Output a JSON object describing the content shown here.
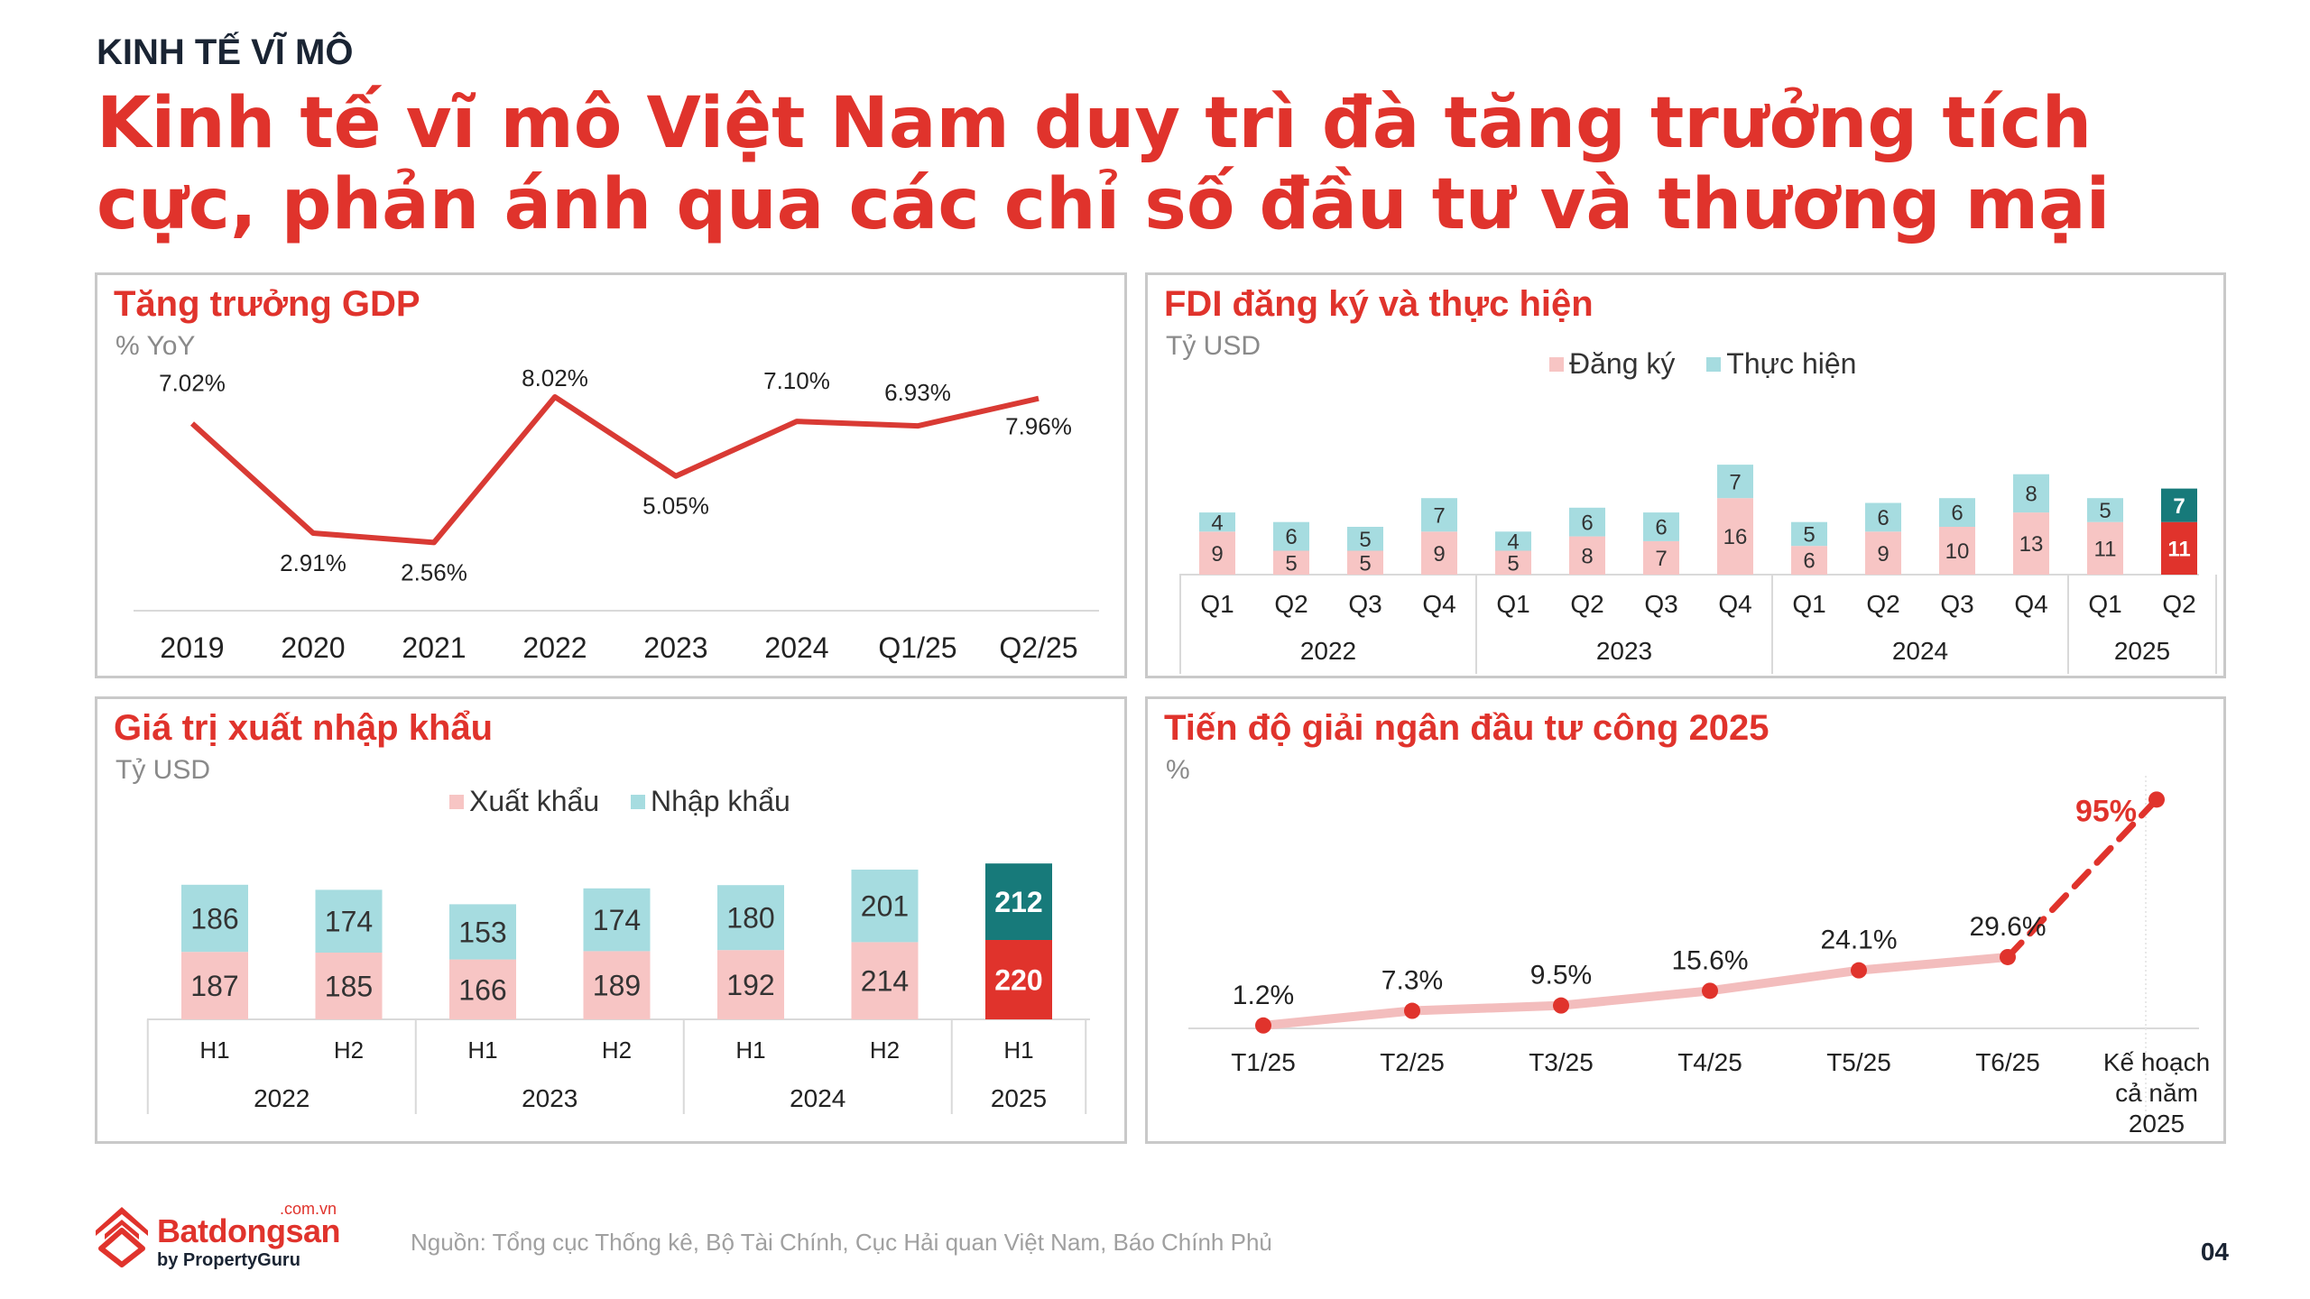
{
  "header": {
    "kicker": "KINH TẾ VĨ MÔ",
    "title": "Kinh tế vĩ mô Việt Nam duy trì đà tăng trưởng tích cực, phản ánh qua các chỉ số đầu tư và thương mại"
  },
  "colors": {
    "accent": "#e0332c",
    "pink": "#f7c5c4",
    "teal": "#a6dce0",
    "dark_teal": "#177a7a",
    "red_line": "#d93a34",
    "light_red_line": "#f3bdbd"
  },
  "gdp": {
    "title": "Tăng trưởng GDP",
    "unit": "% YoY",
    "chart_data": {
      "type": "line",
      "title": "Tăng trưởng GDP",
      "ylabel": "% YoY",
      "categories": [
        "2019",
        "2020",
        "2021",
        "2022",
        "2023",
        "2024",
        "Q1/25",
        "Q2/25"
      ],
      "values": [
        7.02,
        2.91,
        2.56,
        8.02,
        5.05,
        7.1,
        6.93,
        7.96
      ],
      "labels": [
        "7.02%",
        "2.91%",
        "2.56%",
        "8.02%",
        "5.05%",
        "7.10%",
        "6.93%",
        "7.96%"
      ],
      "ylim": [
        0,
        9
      ]
    }
  },
  "fdi": {
    "title": "FDI đăng ký và thực hiện",
    "unit": "Tỷ USD",
    "legend": [
      "Đăng ký",
      "Thực hiện"
    ],
    "chart_data": {
      "type": "bar",
      "stacked": true,
      "title": "FDI đăng ký và thực hiện",
      "ylabel": "Tỷ USD",
      "categories": [
        "Q1",
        "Q2",
        "Q3",
        "Q4",
        "Q1",
        "Q2",
        "Q3",
        "Q4",
        "Q1",
        "Q2",
        "Q3",
        "Q4",
        "Q1",
        "Q2"
      ],
      "groups": [
        {
          "label": "2022",
          "count": 4
        },
        {
          "label": "2023",
          "count": 4
        },
        {
          "label": "2024",
          "count": 4
        },
        {
          "label": "2025",
          "count": 2
        }
      ],
      "series": [
        {
          "name": "Thực hiện",
          "values": [
            4,
            6,
            5,
            7,
            4,
            6,
            6,
            7,
            5,
            6,
            6,
            8,
            5,
            7
          ]
        },
        {
          "name": "Đăng ký",
          "values": [
            9,
            5,
            5,
            9,
            5,
            8,
            7,
            16,
            6,
            9,
            10,
            13,
            11,
            11
          ]
        }
      ],
      "highlight_last": true
    }
  },
  "trade": {
    "title": "Giá trị xuất nhập khẩu",
    "unit": "Tỷ USD",
    "legend": [
      "Xuất khẩu",
      "Nhập khẩu"
    ],
    "chart_data": {
      "type": "bar",
      "stacked": true,
      "title": "Giá trị xuất nhập khẩu",
      "ylabel": "Tỷ USD",
      "categories": [
        "H1",
        "H2",
        "H1",
        "H2",
        "H1",
        "H2",
        "H1"
      ],
      "groups": [
        {
          "label": "2022",
          "count": 2
        },
        {
          "label": "2023",
          "count": 2
        },
        {
          "label": "2024",
          "count": 2
        },
        {
          "label": "2025",
          "count": 1
        }
      ],
      "series": [
        {
          "name": "Nhập khẩu",
          "values": [
            186,
            174,
            153,
            174,
            180,
            201,
            212
          ]
        },
        {
          "name": "Xuất khẩu",
          "values": [
            187,
            185,
            166,
            189,
            192,
            214,
            220
          ]
        }
      ],
      "highlight_last": true
    }
  },
  "disb": {
    "title": "Tiến độ giải ngân đầu tư công 2025",
    "unit": "%",
    "chart_data": {
      "type": "line",
      "title": "Tiến độ giải ngân đầu tư công 2025",
      "ylabel": "%",
      "categories": [
        "T1/25",
        "T2/25",
        "T3/25",
        "T4/25",
        "T5/25",
        "T6/25",
        "Kế hoạch\ncả năm\n2025"
      ],
      "values": [
        1.2,
        7.3,
        9.5,
        15.6,
        24.1,
        29.6,
        95
      ],
      "labels": [
        "1.2%",
        "7.3%",
        "9.5%",
        "15.6%",
        "24.1%",
        "29.6%",
        "95%"
      ],
      "target_index": 6,
      "ylim": [
        0,
        100
      ]
    }
  },
  "footer": {
    "logo_name": "Batdongsan",
    "logo_domain": ".com.vn",
    "logo_by": "by PropertyGuru",
    "source": "Nguồn: Tổng cục Thống kê, Bộ Tài Chính, Cục Hải quan Việt Nam, Báo Chính Phủ",
    "page": "04"
  }
}
